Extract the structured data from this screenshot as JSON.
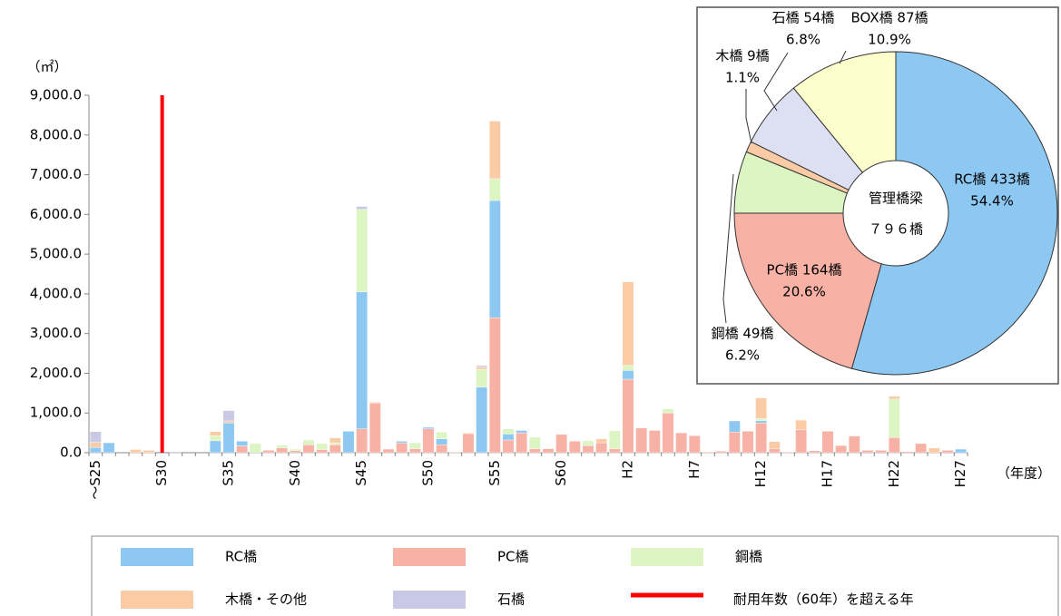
{
  "chart_data": [
    {
      "type": "bar",
      "stacked": true,
      "y_unit": "（㎡）",
      "x_unit": "（年度）",
      "categories": [
        "～S25",
        null,
        null,
        null,
        null,
        "S30",
        null,
        null,
        null,
        null,
        "S35",
        null,
        null,
        null,
        null,
        "S40",
        null,
        null,
        null,
        null,
        "S45",
        null,
        null,
        null,
        null,
        "S50",
        null,
        null,
        null,
        null,
        "S55",
        null,
        null,
        null,
        null,
        "S60",
        null,
        null,
        null,
        null,
        "H2",
        null,
        null,
        null,
        null,
        "H7",
        null,
        null,
        null,
        null,
        "H12",
        null,
        null,
        null,
        null,
        "H17",
        null,
        null,
        null,
        null,
        "H22",
        null,
        null,
        null,
        null,
        "H27"
      ],
      "series": [
        {
          "name": "RC橋",
          "color": "#8dc8f2",
          "values": [
            130,
            250,
            0,
            0,
            0,
            0,
            0,
            0,
            0,
            300,
            750,
            120,
            0,
            0,
            0,
            0,
            0,
            0,
            0,
            540,
            3450,
            0,
            0,
            40,
            0,
            40,
            150,
            0,
            0,
            1650,
            2950,
            150,
            60,
            0,
            0,
            0,
            0,
            0,
            0,
            0,
            220,
            0,
            0,
            0,
            0,
            0,
            0,
            0,
            280,
            0,
            60,
            0,
            0,
            0,
            0,
            0,
            0,
            0,
            0,
            0,
            0,
            0,
            0,
            0,
            0,
            90
          ]
        },
        {
          "name": "PC橋",
          "color": "#f7b2a5",
          "values": [
            0,
            0,
            0,
            0,
            0,
            0,
            0,
            0,
            0,
            0,
            0,
            170,
            0,
            60,
            120,
            50,
            200,
            80,
            200,
            0,
            600,
            1250,
            90,
            250,
            100,
            600,
            200,
            20,
            480,
            0,
            3400,
            320,
            500,
            100,
            100,
            460,
            290,
            180,
            250,
            100,
            1850,
            620,
            560,
            1000,
            500,
            430,
            20,
            40,
            520,
            540,
            750,
            100,
            20,
            580,
            50,
            540,
            180,
            420,
            60,
            60,
            380,
            30,
            230,
            0,
            60,
            0
          ]
        },
        {
          "name": "鋼橋",
          "color": "#dcf5c3",
          "values": [
            0,
            0,
            0,
            0,
            0,
            0,
            0,
            0,
            0,
            130,
            0,
            0,
            230,
            0,
            70,
            40,
            120,
            150,
            50,
            0,
            2080,
            0,
            0,
            0,
            150,
            0,
            170,
            0,
            0,
            450,
            550,
            130,
            0,
            290,
            0,
            0,
            0,
            120,
            0,
            450,
            130,
            0,
            0,
            100,
            0,
            0,
            0,
            0,
            0,
            0,
            50,
            0,
            0,
            0,
            0,
            0,
            0,
            0,
            0,
            0,
            970,
            0,
            0,
            0,
            0,
            0
          ]
        },
        {
          "name": "木橋・その他",
          "color": "#fbcba6",
          "values": [
            130,
            0,
            0,
            80,
            60,
            0,
            0,
            0,
            0,
            100,
            50,
            0,
            0,
            0,
            0,
            0,
            0,
            0,
            120,
            0,
            0,
            20,
            0,
            0,
            0,
            0,
            0,
            0,
            20,
            60,
            1450,
            0,
            0,
            0,
            0,
            0,
            0,
            0,
            100,
            0,
            2100,
            0,
            0,
            0,
            0,
            0,
            0,
            0,
            0,
            0,
            520,
            180,
            0,
            240,
            0,
            0,
            0,
            0,
            0,
            0,
            70,
            0,
            0,
            120,
            0,
            0
          ]
        },
        {
          "name": "石橋",
          "color": "#c9c9e5",
          "values": [
            270,
            0,
            0,
            0,
            0,
            0,
            30,
            0,
            0,
            0,
            260,
            0,
            0,
            0,
            0,
            0,
            0,
            0,
            0,
            0,
            70,
            0,
            0,
            0,
            0,
            0,
            0,
            0,
            0,
            40,
            0,
            0,
            0,
            0,
            0,
            0,
            0,
            0,
            0,
            0,
            0,
            0,
            0,
            0,
            0,
            0,
            0,
            0,
            0,
            0,
            0,
            0,
            0,
            0,
            0,
            0,
            0,
            0,
            0,
            0,
            0,
            0,
            0,
            0,
            0,
            0
          ]
        }
      ],
      "threshold": {
        "name": "耐用年数（60年）を超える年",
        "at": "S30",
        "color": "#ff0000"
      },
      "ylim": [
        0,
        9000
      ],
      "yticks": [
        {
          "value": 0,
          "label": "0.0"
        },
        {
          "value": 1000,
          "label": "1,000.0"
        },
        {
          "value": 2000,
          "label": "2,000.0"
        },
        {
          "value": 3000,
          "label": "3,000.0"
        },
        {
          "value": 4000,
          "label": "4,000.0"
        },
        {
          "value": 5000,
          "label": "5,000.0"
        },
        {
          "value": 6000,
          "label": "6,000.0"
        },
        {
          "value": 7000,
          "label": "7,000.0"
        },
        {
          "value": 8000,
          "label": "8,000.0"
        },
        {
          "value": 9000,
          "label": "9,000.0"
        }
      ]
    },
    {
      "type": "pie",
      "donut": true,
      "center_label": [
        "管理橋梁",
        "７９６橋"
      ],
      "labels": [
        "RC橋 433橋",
        "PC橋 164橋",
        "鋼橋 49橋",
        "木橋 9橋",
        "石橋 54橋",
        "BOX橋 87橋"
      ],
      "values": [
        54.4,
        20.6,
        6.2,
        1.1,
        6.8,
        10.9
      ],
      "value_labels": [
        "54.4%",
        "20.6%",
        "6.2%",
        "1.1%",
        "6.8%",
        "10.9%"
      ],
      "colors": [
        "#8dc8f2",
        "#f7b2a5",
        "#dcf5c3",
        "#fbcba6",
        "#dde0f2",
        "#fefdcc"
      ]
    }
  ]
}
